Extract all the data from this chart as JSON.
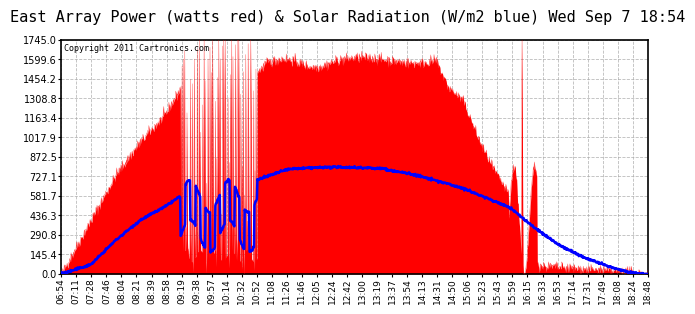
{
  "title": "East Array Power (watts red) & Solar Radiation (W/m2 blue) Wed Sep 7 18:54",
  "copyright_text": "Copyright 2011 Cartronics.com",
  "title_fontsize": 11,
  "background_color": "#ffffff",
  "plot_bg_color": "#ffffff",
  "y_ticks": [
    0.0,
    145.4,
    290.8,
    436.3,
    581.7,
    727.1,
    872.5,
    1017.9,
    1163.4,
    1308.8,
    1454.2,
    1599.6,
    1745.0
  ],
  "y_max": 1745.0,
  "x_tick_labels": [
    "06:54",
    "07:11",
    "07:28",
    "07:46",
    "08:04",
    "08:21",
    "08:39",
    "08:58",
    "09:19",
    "09:38",
    "09:57",
    "10:14",
    "10:32",
    "10:52",
    "11:08",
    "11:26",
    "11:46",
    "12:05",
    "12:24",
    "12:42",
    "13:00",
    "13:19",
    "13:37",
    "13:54",
    "14:13",
    "14:31",
    "14:50",
    "15:06",
    "15:23",
    "15:43",
    "15:59",
    "16:15",
    "16:33",
    "16:53",
    "17:14",
    "17:31",
    "17:49",
    "18:08",
    "18:24",
    "18:48"
  ],
  "grid_color": "#aaaaaa",
  "red_fill_color": "#ff0000",
  "blue_line_color": "#0000ff",
  "red_line_color": "#ff0000",
  "hour_start": 6.9,
  "hour_end": 18.8
}
